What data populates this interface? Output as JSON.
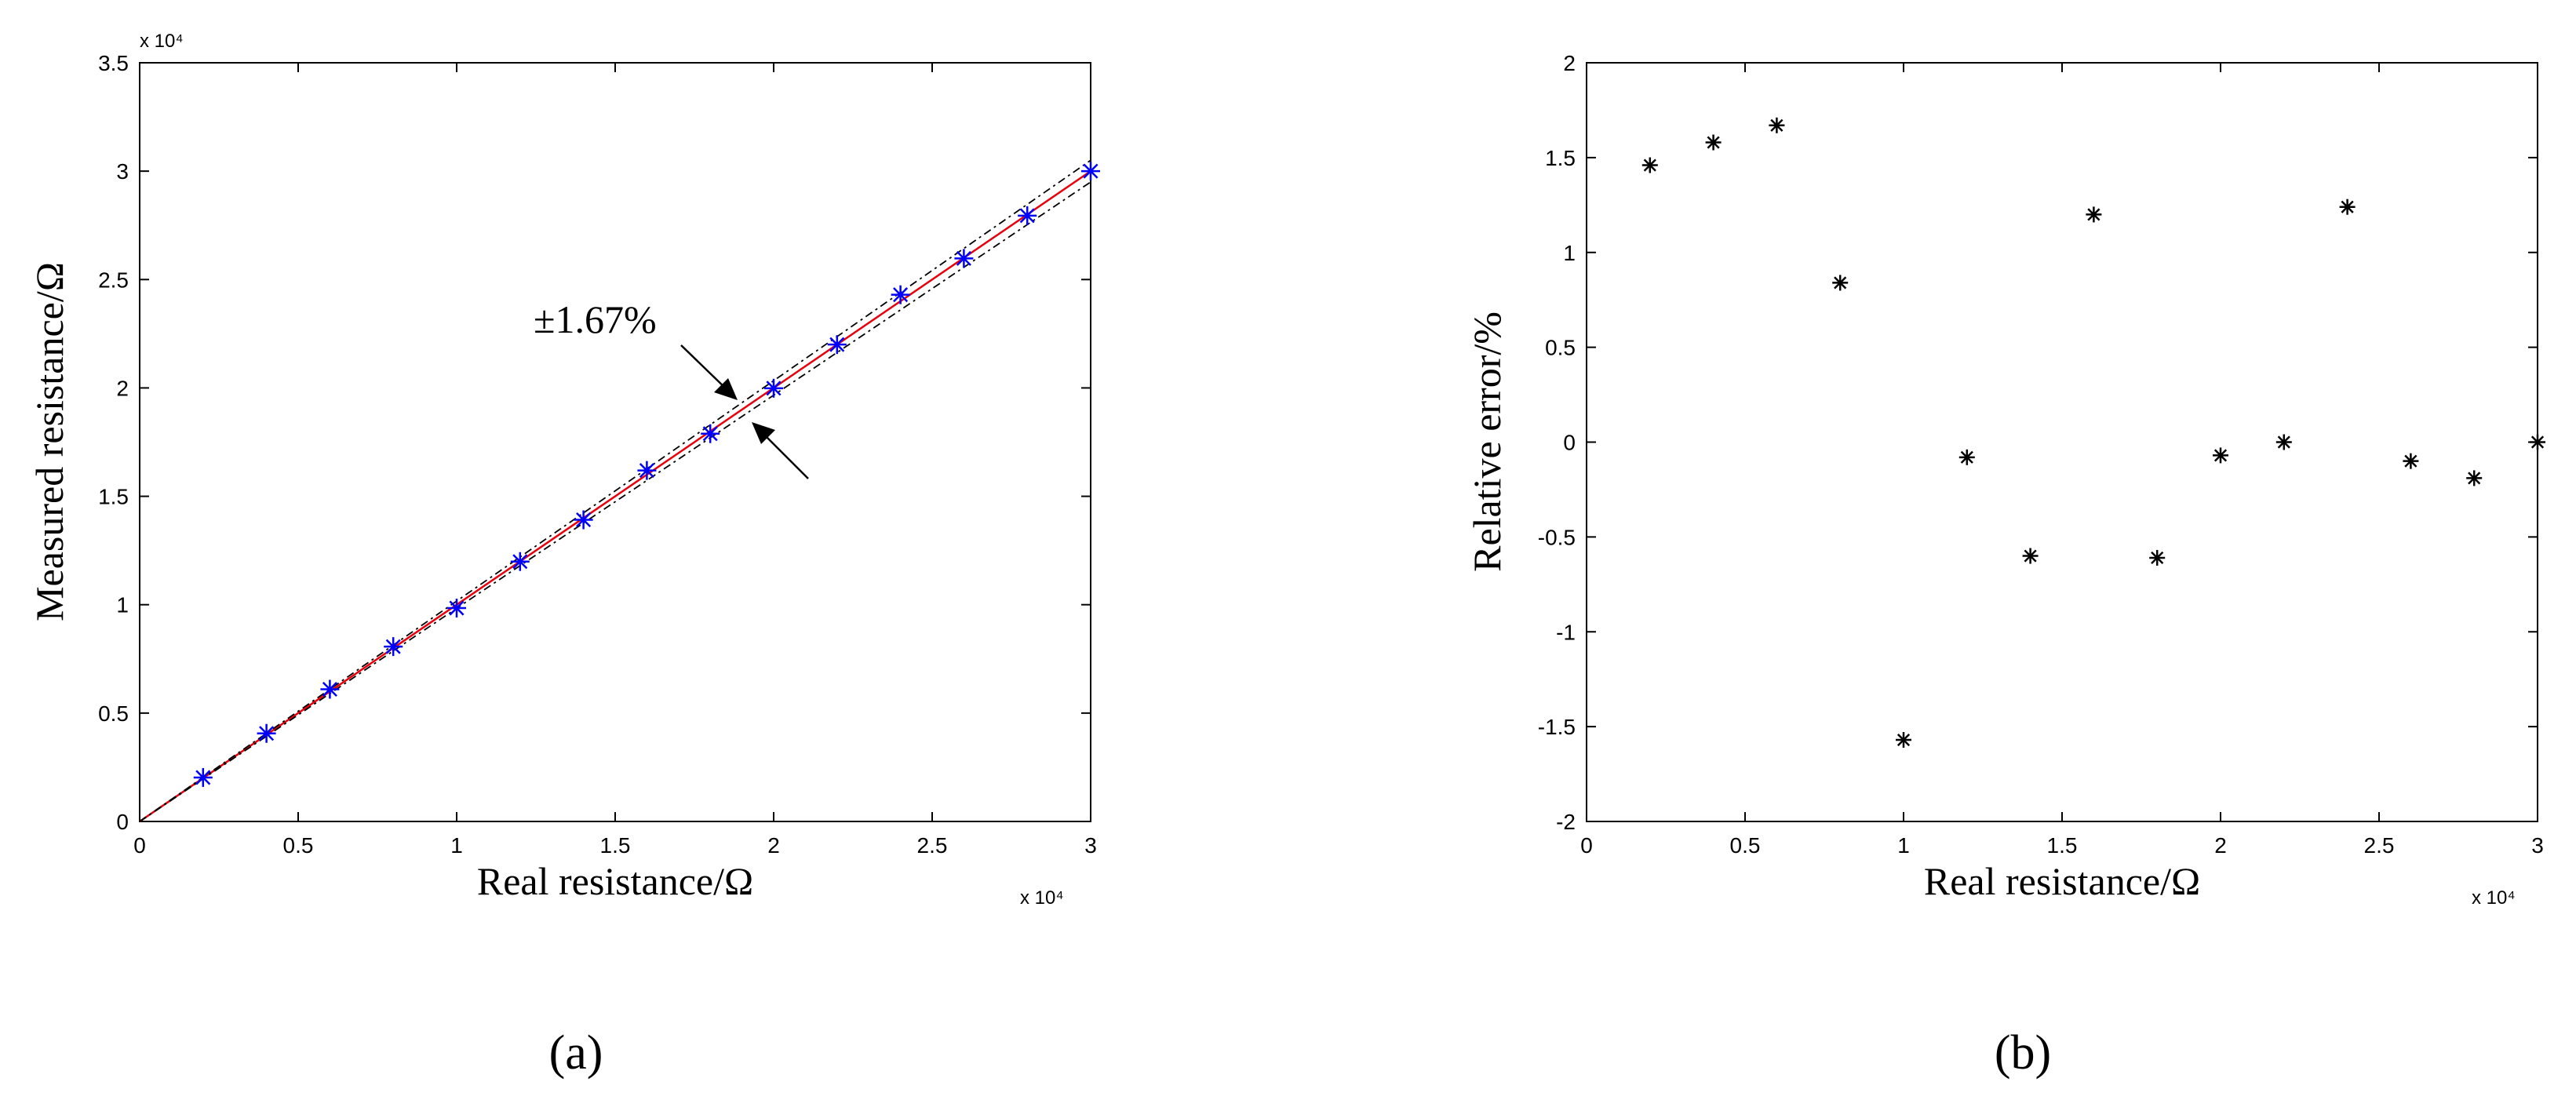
{
  "chart_data": [
    {
      "type": "line",
      "panel_label": "(a)",
      "xlabel": "Real resistance/Ω",
      "ylabel": "Measured resistance/Ω",
      "x_multiplier_label": "x 10⁴",
      "y_multiplier_label": "x 10⁴",
      "xlim": [
        0,
        30000
      ],
      "ylim": [
        0,
        35000
      ],
      "x_tick_labels": [
        "0",
        "0.5",
        "1",
        "1.5",
        "2",
        "2.5",
        "3"
      ],
      "y_tick_labels": [
        "0",
        "0.5",
        "1",
        "1.5",
        "2",
        "2.5",
        "3",
        "3.5"
      ],
      "annotation": "±1.67%",
      "grid": false,
      "series": [
        {
          "x": [
            0,
            30000
          ],
          "y": [
            0,
            30000
          ],
          "color": "#e8000b",
          "style": "solid"
        },
        {
          "x": [
            0,
            30000
          ],
          "y": [
            0,
            30501
          ],
          "color": "#000000",
          "style": "dashdot"
        },
        {
          "x": [
            0,
            30000
          ],
          "y": [
            0,
            29499
          ],
          "color": "#000000",
          "style": "dashdot"
        },
        {
          "x": [
            2000,
            4000,
            6000,
            8000,
            10000,
            12000,
            14000,
            16000,
            18000,
            20000,
            22000,
            24000,
            26000,
            28000,
            30000
          ],
          "y": [
            2029,
            4063,
            6100,
            8067,
            9843,
            11990,
            13916,
            16192,
            17889,
            19986,
            22000,
            24298,
            25974,
            27946,
            30000
          ],
          "color": "#0000ff",
          "style": "marker"
        }
      ]
    },
    {
      "type": "scatter",
      "panel_label": "(b)",
      "xlabel": "Real resistance/Ω",
      "ylabel": "Relative error/%",
      "x_multiplier_label": "x 10⁴",
      "xlim": [
        0,
        30000
      ],
      "ylim": [
        -2,
        2
      ],
      "x_tick_labels": [
        "0",
        "0.5",
        "1",
        "1.5",
        "2",
        "2.5",
        "3"
      ],
      "y_tick_labels": [
        "-2",
        "-1.5",
        "-1",
        "-0.5",
        "0",
        "0.5",
        "1",
        "1.5",
        "2"
      ],
      "grid": false,
      "series": [
        {
          "x": [
            2000,
            4000,
            6000,
            8000,
            10000,
            12000,
            14000,
            16000,
            18000,
            20000,
            22000,
            24000,
            26000,
            28000,
            30000
          ],
          "y": [
            1.46,
            1.58,
            1.67,
            0.84,
            -1.57,
            -0.08,
            -0.6,
            1.2,
            -0.61,
            -0.07,
            0.0,
            1.24,
            -0.1,
            -0.19,
            0.0
          ],
          "color": "#000000"
        }
      ]
    }
  ],
  "colors": {
    "fit_line": "#e8000b",
    "bound_lines": "#000000",
    "markers_a": "#0000ff",
    "markers_b": "#000000"
  }
}
